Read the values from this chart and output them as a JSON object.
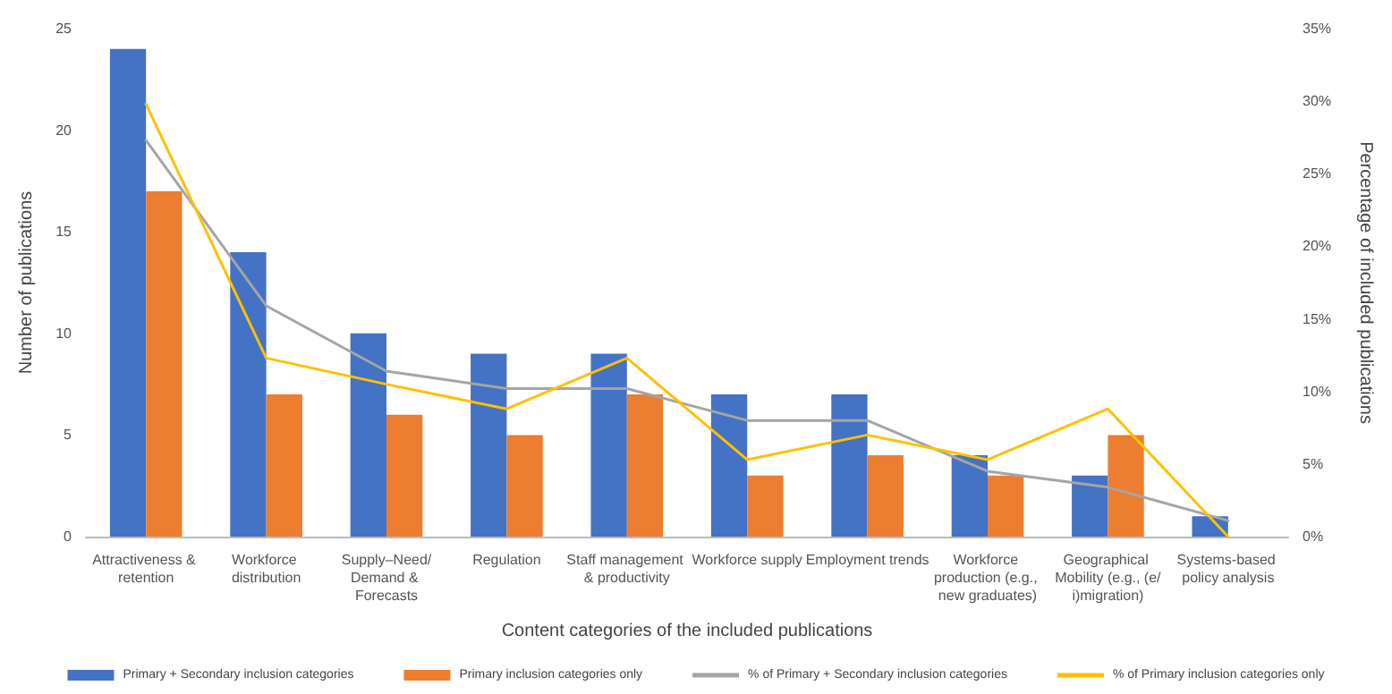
{
  "chart_data": {
    "type": "bar",
    "xlabel": "Content categories of the included publications",
    "ylabel": "Number of publications",
    "y2label": "Percentage of included publications",
    "categories": [
      "Attractiveness & retention",
      "Workforce distribution",
      "Supply–Need/Demand & Forecasts",
      "Regulation",
      "Staff management & productivity",
      "Workforce supply",
      "Employment trends",
      "Workforce production (e.g., new graduates)",
      "Geographical Mobility (e.g., (e/i)migration)",
      "Systems-based policy analysis"
    ],
    "series": [
      {
        "name": "Primary + Secondary inclusion categories",
        "color": "#4472c4",
        "values": [
          24,
          14,
          10,
          9,
          9,
          7,
          7,
          4,
          3,
          1
        ]
      },
      {
        "name": "Primary inclusion categories only",
        "color": "#ed7d31",
        "values": [
          17,
          7,
          6,
          5,
          7,
          3,
          4,
          3,
          5,
          0
        ]
      },
      {
        "name": "% of Primary + Secondary inclusion categories",
        "type": "line",
        "axis": "y2",
        "color": "#a5a5a5",
        "values": [
          27.3,
          15.9,
          11.4,
          10.2,
          10.2,
          8.0,
          8.0,
          4.5,
          3.4,
          1.1
        ]
      },
      {
        "name": "% of Primary inclusion categories only",
        "type": "line",
        "axis": "y2",
        "color": "#ffc000",
        "values": [
          29.8,
          12.3,
          10.5,
          8.8,
          12.3,
          5.3,
          7.0,
          5.3,
          8.8,
          0
        ]
      }
    ],
    "ylim": [
      0,
      25
    ],
    "yticks": [
      0,
      5,
      10,
      15,
      20,
      25
    ],
    "y2lim": [
      0,
      35
    ],
    "y2ticks": [
      {
        "value": 0,
        "label": "0%"
      },
      {
        "value": 5,
        "label": "5%"
      },
      {
        "value": 10,
        "label": "10%"
      },
      {
        "value": 15,
        "label": "15%"
      },
      {
        "value": 20,
        "label": "20%"
      },
      {
        "value": 25,
        "label": "25%"
      },
      {
        "value": 30,
        "label": "30%"
      },
      {
        "value": 35,
        "label": "35%"
      }
    ],
    "grid": false,
    "legend": "bottom",
    "marker": "none",
    "line_style": "solid"
  }
}
